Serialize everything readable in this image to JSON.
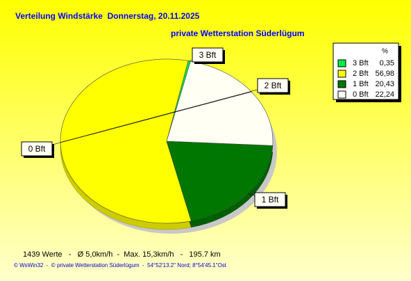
{
  "chart_data": {
    "type": "pie",
    "title": "Verteilung Windstärke  Donnerstag, 20.11.2025",
    "subtitle": "private Wetterstation Süderlügum",
    "categories": [
      "3 Bft",
      "2 Bft",
      "1 Bft",
      "0 Bft"
    ],
    "values": [
      0.35,
      56.98,
      20.43,
      22.24
    ],
    "value_labels": [
      "0,35",
      "56,98",
      "20,43",
      "22,24"
    ],
    "colors": [
      "#00ee44",
      "#ffff00",
      "#007700",
      "#fffff4"
    ],
    "legend_title": "%",
    "legend": "top-right",
    "footer": "1439 Werte   -   Ø 5,0km/h  -  Max. 15,3km/h   -   195.7 km",
    "credit": "© WsWin32  -  © private Wetterstation Süderlügum  -  54°52'13.2\" Nord; 8°54'45.1\"Ost"
  }
}
